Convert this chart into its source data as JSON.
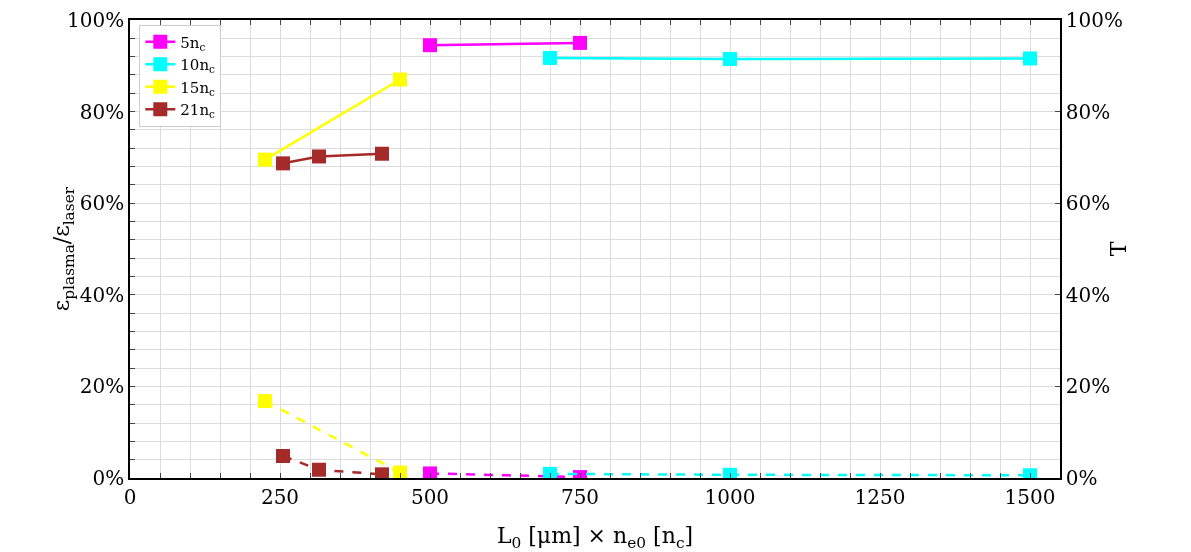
{
  "chart_data": {
    "type": "line",
    "xlabel": "L$_{0}$ [μm] × n$_{e0}$ [n$_{c}$]",
    "ylabel": "ε$_{plasma}$/ε$_{laser}$",
    "y2label": "T",
    "xlim": [
      0,
      1550
    ],
    "xticks": [
      {
        "value": 0,
        "label": "0"
      },
      {
        "value": 50,
        "label": null
      },
      {
        "value": 100,
        "label": null
      },
      {
        "value": 150,
        "label": null
      },
      {
        "value": 200,
        "label": null
      },
      {
        "value": 250,
        "label": "250"
      },
      {
        "value": 300,
        "label": null
      },
      {
        "value": 350,
        "label": null
      },
      {
        "value": 400,
        "label": null
      },
      {
        "value": 450,
        "label": null
      },
      {
        "value": 500,
        "label": "500"
      },
      {
        "value": 550,
        "label": null
      },
      {
        "value": 600,
        "label": null
      },
      {
        "value": 650,
        "label": null
      },
      {
        "value": 700,
        "label": null
      },
      {
        "value": 750,
        "label": "750"
      },
      {
        "value": 800,
        "label": null
      },
      {
        "value": 850,
        "label": null
      },
      {
        "value": 900,
        "label": null
      },
      {
        "value": 950,
        "label": null
      },
      {
        "value": 1000,
        "label": "1000"
      },
      {
        "value": 1050,
        "label": null
      },
      {
        "value": 1100,
        "label": null
      },
      {
        "value": 1150,
        "label": null
      },
      {
        "value": 1200,
        "label": null
      },
      {
        "value": 1250,
        "label": "1250"
      },
      {
        "value": 1300,
        "label": null
      },
      {
        "value": 1350,
        "label": null
      },
      {
        "value": 1400,
        "label": null
      },
      {
        "value": 1450,
        "label": null
      },
      {
        "value": 1500,
        "label": "1500"
      },
      {
        "value": 1550,
        "label": null
      }
    ],
    "ylim": [
      0,
      100
    ],
    "yticks": [
      {
        "value": 0,
        "label": "0%"
      },
      {
        "value": 4,
        "label": null
      },
      {
        "value": 8,
        "label": null
      },
      {
        "value": 12,
        "label": null
      },
      {
        "value": 16,
        "label": null
      },
      {
        "value": 20,
        "label": "20%"
      },
      {
        "value": 24,
        "label": null
      },
      {
        "value": 28,
        "label": null
      },
      {
        "value": 32,
        "label": null
      },
      {
        "value": 36,
        "label": null
      },
      {
        "value": 40,
        "label": "40%"
      },
      {
        "value": 44,
        "label": null
      },
      {
        "value": 48,
        "label": null
      },
      {
        "value": 52,
        "label": null
      },
      {
        "value": 56,
        "label": null
      },
      {
        "value": 60,
        "label": "60%"
      },
      {
        "value": 64,
        "label": null
      },
      {
        "value": 68,
        "label": null
      },
      {
        "value": 72,
        "label": null
      },
      {
        "value": 76,
        "label": null
      },
      {
        "value": 80,
        "label": "80%"
      },
      {
        "value": 84,
        "label": null
      },
      {
        "value": 88,
        "label": null
      },
      {
        "value": 92,
        "label": null
      },
      {
        "value": 96,
        "label": null
      },
      {
        "value": 100,
        "label": "100%"
      }
    ],
    "y2lim": [
      0,
      100
    ],
    "y2ticks": [
      {
        "value": 0,
        "label": "0%"
      },
      {
        "value": 20,
        "label": "20%"
      },
      {
        "value": 40,
        "label": "40%"
      },
      {
        "value": 60,
        "label": "60%"
      },
      {
        "value": 80,
        "label": "80%"
      },
      {
        "value": 100,
        "label": "100%"
      }
    ],
    "grid": true,
    "legend": "top left",
    "marker": "square",
    "series": [
      {
        "name": "5n$_{c}$",
        "color": "#ff00ff",
        "x": [
          500,
          750
        ],
        "values": [
          94.5,
          95
        ],
        "line_style": "solid"
      },
      {
        "name": "10n$_{c}$",
        "color": "#00ffff",
        "x": [
          700,
          1000,
          1500
        ],
        "values": [
          91.7,
          91.5,
          91.6
        ],
        "line_style": "solid"
      },
      {
        "name": "15n$_{c}$",
        "color": "#ffff00",
        "x": [
          225,
          450
        ],
        "values": [
          69.5,
          87
        ],
        "line_style": "solid"
      },
      {
        "name": "21n$_{c}$",
        "color": "#a52a2a",
        "x": [
          255,
          315,
          420
        ],
        "values": [
          68.7,
          70.2,
          70.8
        ],
        "line_style": "solid"
      },
      {
        "color": "#ff00ff",
        "x": [
          500,
          750
        ],
        "values": [
          1.0,
          0.2
        ],
        "line_style": "dashed",
        "axis": "y2"
      },
      {
        "color": "#00ffff",
        "x": [
          700,
          1000,
          1500
        ],
        "values": [
          0.9,
          0.7,
          0.6
        ],
        "line_style": "dashed",
        "axis": "y2"
      },
      {
        "color": "#ffff00",
        "x": [
          225,
          450
        ],
        "values": [
          16.8,
          1.2
        ],
        "line_style": "dashed",
        "axis": "y2"
      },
      {
        "color": "#a52a2a",
        "x": [
          255,
          315,
          420
        ],
        "values": [
          4.8,
          1.8,
          0.8
        ],
        "line_style": "dashed",
        "axis": "y2"
      }
    ]
  }
}
